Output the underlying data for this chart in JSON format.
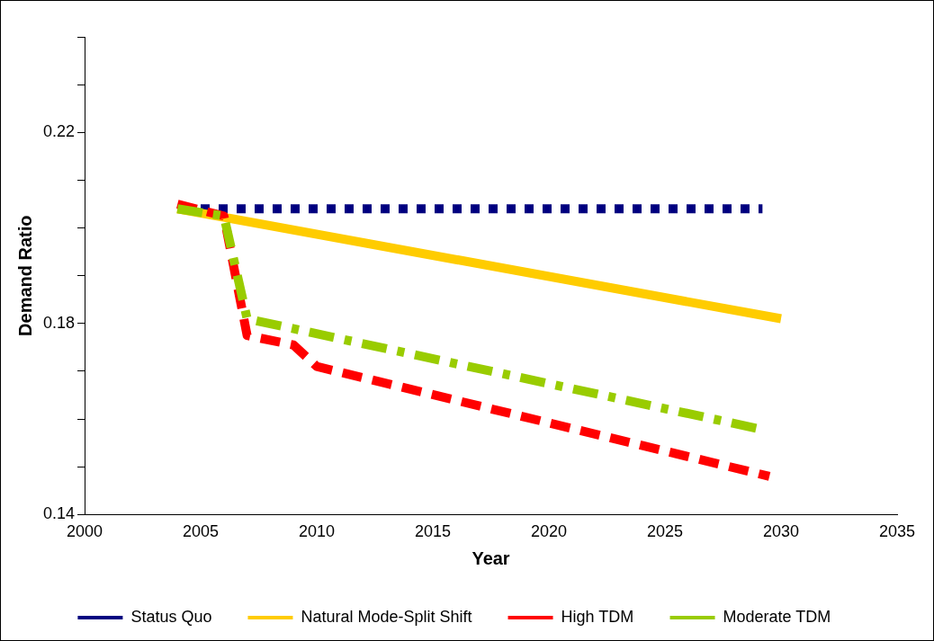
{
  "chart_data": {
    "type": "line",
    "xlabel": "Year",
    "ylabel": "Demand Ratio",
    "xlim": [
      2000,
      2035
    ],
    "xticks": [
      2000,
      2005,
      2010,
      2015,
      2020,
      2025,
      2030,
      2035
    ],
    "ylim": [
      0.14,
      0.24
    ],
    "yticks": [
      0.14,
      {
        "value": 0.15,
        "label": null
      },
      {
        "value": 0.16,
        "label": null
      },
      {
        "value": 0.17,
        "label": null
      },
      0.18,
      {
        "value": 0.19,
        "label": null
      },
      {
        "value": 0.2,
        "label": null
      },
      {
        "value": 0.21,
        "label": null
      },
      0.22,
      {
        "value": 0.23,
        "label": null
      },
      {
        "value": 0.24,
        "label": null
      }
    ],
    "grid": false,
    "legend": "bottom",
    "marker": "none",
    "series": [
      {
        "name": "Status Quo",
        "color": "#000080",
        "line_style": "dotted",
        "x": [
          2005,
          2029.2
        ],
        "values": [
          0.204,
          0.204
        ]
      },
      {
        "name": "Natural Mode-Split Shift",
        "color": "#ffcc00",
        "line_style": "solid",
        "x": [
          2004,
          2030
        ],
        "values": [
          0.204,
          0.181
        ]
      },
      {
        "name": "High TDM",
        "color": "#ff0000",
        "line_style": "dashed",
        "x": [
          2004,
          2006,
          2007,
          2009,
          2010,
          2029.5
        ],
        "values": [
          0.205,
          0.2025,
          0.1775,
          0.1755,
          0.171,
          0.148
        ]
      },
      {
        "name": "Moderate TDM",
        "color": "#99cc00",
        "line_style": "dashdot",
        "x": [
          2004,
          2006,
          2007,
          2029
        ],
        "values": [
          0.204,
          0.2025,
          0.181,
          0.158
        ]
      }
    ]
  }
}
